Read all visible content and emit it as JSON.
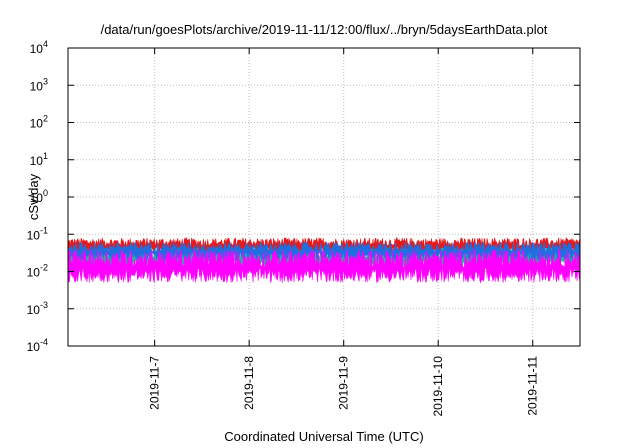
{
  "chart_data": {
    "type": "area",
    "title": "/data/run/goesPlots/archive/2019-11-11/12:00/flux/../bryn/5daysEarthData.plot",
    "xlabel": "Coordinated Universal Time (UTC)",
    "ylabel": "cSv/day",
    "yscale": "log",
    "ylim": [
      0.0001,
      10000
    ],
    "xlim": [
      "2019-11-06T02:00",
      "2019-11-11T12:00"
    ],
    "yticks": [
      {
        "base": "10",
        "exp": "4",
        "value": 10000
      },
      {
        "base": "10",
        "exp": "3",
        "value": 1000
      },
      {
        "base": "10",
        "exp": "2",
        "value": 100
      },
      {
        "base": "10",
        "exp": "1",
        "value": 10
      },
      {
        "base": "10",
        "exp": "0",
        "value": 1
      },
      {
        "base": "10",
        "exp": "-1",
        "value": 0.1
      },
      {
        "base": "10",
        "exp": "-2",
        "value": 0.01
      },
      {
        "base": "10",
        "exp": "-3",
        "value": 0.001
      },
      {
        "base": "10",
        "exp": "-4",
        "value": 0.0001
      }
    ],
    "xticks": [
      "2019-11-7",
      "2019-11-8",
      "2019-11-9",
      "2019-11-10",
      "2019-11-11"
    ],
    "grid": true,
    "series": [
      {
        "color": "#e41a1c",
        "low": 0.03,
        "high": 0.09
      },
      {
        "color": "#22b2a2",
        "low": 0.012,
        "high": 0.05
      },
      {
        "color": "#1f6fe0",
        "low": 0.02,
        "high": 0.07
      },
      {
        "color": "#ff00ff",
        "low": 0.005,
        "high": 0.05
      }
    ]
  }
}
